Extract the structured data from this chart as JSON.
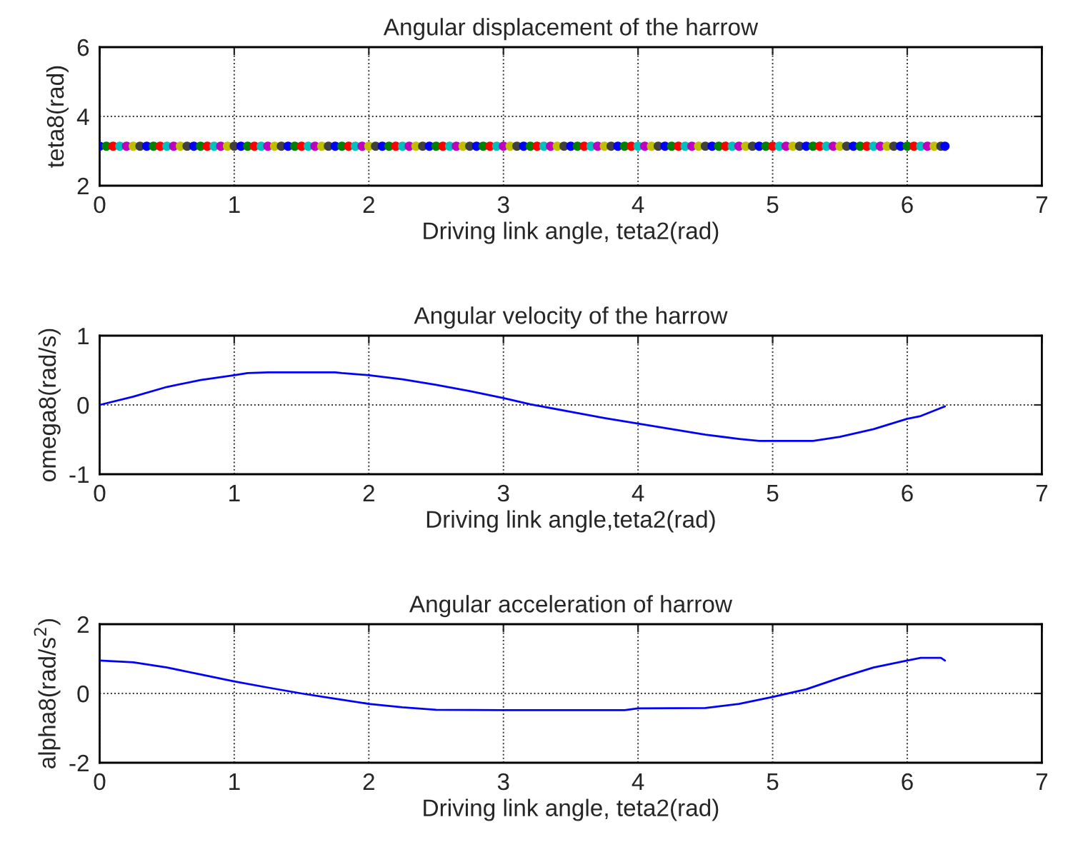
{
  "chart_data": [
    {
      "type": "scatter",
      "title": "Angular displacement of the harrow",
      "xlabel": "Driving link angle, teta2(rad)",
      "ylabel": "teta8(rad)",
      "marker": "circle",
      "grid": true,
      "xlim": [
        0,
        7
      ],
      "xticks": [
        0,
        1,
        2,
        3,
        4,
        5,
        6,
        7
      ],
      "ylim": [
        2,
        6
      ],
      "yticks": [
        2,
        4,
        6
      ],
      "x": [
        0,
        0.05,
        0.1,
        0.15,
        0.2,
        0.25,
        0.3,
        0.35,
        0.4,
        0.45,
        0.5,
        0.55,
        0.6,
        0.65,
        0.7,
        0.75,
        0.8,
        0.85,
        0.9,
        0.95,
        1,
        1.05,
        1.1,
        1.15,
        1.2,
        1.25,
        1.3,
        1.35,
        1.4,
        1.45,
        1.5,
        1.55,
        1.6,
        1.65,
        1.7,
        1.75,
        1.8,
        1.85,
        1.9,
        1.95,
        2,
        2.05,
        2.1,
        2.15,
        2.2,
        2.25,
        2.3,
        2.35,
        2.4,
        2.45,
        2.5,
        2.55,
        2.6,
        2.65,
        2.7,
        2.75,
        2.8,
        2.85,
        2.9,
        2.95,
        3,
        3.05,
        3.1,
        3.15,
        3.2,
        3.25,
        3.3,
        3.35,
        3.4,
        3.45,
        3.5,
        3.55,
        3.6,
        3.65,
        3.7,
        3.75,
        3.8,
        3.85,
        3.9,
        3.95,
        4,
        4.05,
        4.1,
        4.15,
        4.2,
        4.25,
        4.3,
        4.35,
        4.4,
        4.45,
        4.5,
        4.55,
        4.6,
        4.65,
        4.7,
        4.75,
        4.8,
        4.85,
        4.9,
        4.95,
        5,
        5.05,
        5.1,
        5.15,
        5.2,
        5.25,
        5.3,
        5.35,
        5.4,
        5.45,
        5.5,
        5.55,
        5.6,
        5.65,
        5.7,
        5.75,
        5.8,
        5.85,
        5.9,
        5.95,
        6,
        6.05,
        6.1,
        6.15,
        6.2,
        6.25,
        6.28
      ],
      "values": [
        3.14,
        3.14,
        3.14,
        3.14,
        3.14,
        3.14,
        3.14,
        3.14,
        3.14,
        3.14,
        3.14,
        3.14,
        3.14,
        3.14,
        3.14,
        3.14,
        3.14,
        3.14,
        3.14,
        3.14,
        3.14,
        3.14,
        3.14,
        3.14,
        3.14,
        3.14,
        3.14,
        3.14,
        3.14,
        3.14,
        3.14,
        3.14,
        3.14,
        3.14,
        3.14,
        3.14,
        3.14,
        3.14,
        3.14,
        3.14,
        3.14,
        3.14,
        3.14,
        3.14,
        3.14,
        3.14,
        3.14,
        3.14,
        3.14,
        3.14,
        3.14,
        3.14,
        3.14,
        3.14,
        3.14,
        3.14,
        3.14,
        3.14,
        3.14,
        3.14,
        3.14,
        3.14,
        3.14,
        3.14,
        3.14,
        3.14,
        3.14,
        3.14,
        3.14,
        3.14,
        3.14,
        3.14,
        3.14,
        3.14,
        3.14,
        3.14,
        3.14,
        3.14,
        3.14,
        3.14,
        3.14,
        3.14,
        3.14,
        3.14,
        3.14,
        3.14,
        3.14,
        3.14,
        3.14,
        3.14,
        3.14,
        3.14,
        3.14,
        3.14,
        3.14,
        3.14,
        3.14,
        3.14,
        3.14,
        3.14,
        3.14,
        3.14,
        3.14,
        3.14,
        3.14,
        3.14,
        3.14,
        3.14,
        3.14,
        3.14,
        3.14,
        3.14,
        3.14,
        3.14,
        3.14,
        3.14,
        3.14,
        3.14,
        3.14,
        3.14,
        3.14,
        3.14,
        3.14,
        3.14,
        3.14,
        3.14,
        3.14
      ],
      "colors": [
        "#0000ff",
        "#008000",
        "#ff0000",
        "#00bfbf",
        "#bf00bf",
        "#bfbf00",
        "#404040",
        "#0000ff",
        "#008000",
        "#ff0000",
        "#00bfbf",
        "#bf00bf",
        "#bfbf00",
        "#404040",
        "#0000ff",
        "#008000",
        "#ff0000",
        "#00bfbf",
        "#bf00bf",
        "#bfbf00",
        "#404040",
        "#0000ff",
        "#008000",
        "#ff0000",
        "#00bfbf",
        "#bf00bf",
        "#bfbf00",
        "#404040",
        "#0000ff",
        "#008000",
        "#ff0000",
        "#00bfbf",
        "#bf00bf",
        "#bfbf00",
        "#404040",
        "#0000ff",
        "#008000",
        "#ff0000",
        "#00bfbf",
        "#bf00bf",
        "#bfbf00",
        "#404040",
        "#0000ff",
        "#008000",
        "#ff0000",
        "#00bfbf",
        "#bf00bf",
        "#bfbf00",
        "#404040",
        "#0000ff",
        "#008000",
        "#ff0000",
        "#00bfbf",
        "#bf00bf",
        "#bfbf00",
        "#404040",
        "#0000ff",
        "#008000",
        "#ff0000",
        "#00bfbf",
        "#bf00bf",
        "#bfbf00",
        "#404040",
        "#0000ff",
        "#008000",
        "#ff0000",
        "#00bfbf",
        "#bf00bf",
        "#bfbf00",
        "#404040",
        "#0000ff",
        "#008000",
        "#ff0000",
        "#00bfbf",
        "#bf00bf",
        "#bfbf00",
        "#404040",
        "#0000ff",
        "#008000",
        "#ff0000",
        "#00bfbf",
        "#bf00bf",
        "#bfbf00",
        "#404040",
        "#0000ff",
        "#008000",
        "#ff0000",
        "#00bfbf",
        "#bf00bf",
        "#bfbf00",
        "#404040",
        "#0000ff",
        "#008000",
        "#ff0000",
        "#00bfbf",
        "#bf00bf",
        "#bfbf00",
        "#404040",
        "#0000ff",
        "#008000",
        "#ff0000",
        "#00bfbf",
        "#bf00bf",
        "#bfbf00",
        "#404040",
        "#0000ff",
        "#008000",
        "#ff0000",
        "#00bfbf",
        "#bf00bf",
        "#bfbf00",
        "#404040",
        "#0000ff",
        "#008000",
        "#ff0000",
        "#00bfbf",
        "#bf00bf",
        "#bfbf00",
        "#404040",
        "#0000ff",
        "#008000",
        "#ff0000",
        "#00bfbf",
        "#bf00bf",
        "#bfbf00",
        "#404040",
        "#0000ff"
      ]
    },
    {
      "type": "line",
      "title": "Angular velocity of the harrow",
      "xlabel": "Driving link angle,teta2(rad)",
      "ylabel": "omega8(rad/s)",
      "grid": true,
      "xlim": [
        0,
        7
      ],
      "xticks": [
        0,
        1,
        2,
        3,
        4,
        5,
        6,
        7
      ],
      "ylim": [
        -1,
        1
      ],
      "yticks": [
        -1,
        0,
        1
      ],
      "series": [
        {
          "color": "#0000ff",
          "x": [
            0,
            0.25,
            0.5,
            0.75,
            1,
            1.1,
            1.25,
            1.75,
            1.8,
            2,
            2.25,
            2.5,
            2.75,
            3,
            3.2,
            3.5,
            3.75,
            4,
            4.25,
            4.5,
            4.75,
            4.9,
            5.3,
            5.5,
            5.75,
            6,
            6.1,
            6.28
          ],
          "values": [
            0,
            0.12,
            0.26,
            0.36,
            0.43,
            0.46,
            0.47,
            0.47,
            0.46,
            0.43,
            0.37,
            0.29,
            0.2,
            0.1,
            0.01,
            -0.1,
            -0.19,
            -0.27,
            -0.35,
            -0.43,
            -0.49,
            -0.52,
            -0.52,
            -0.46,
            -0.35,
            -0.2,
            -0.16,
            -0.02
          ]
        }
      ]
    },
    {
      "type": "line",
      "title": "Angular acceleration of harrow",
      "xlabel": "Driving link angle, teta2(rad)",
      "ylabel": "alpha8(rad/s$^{2}$)",
      "grid": true,
      "xlim": [
        0,
        7
      ],
      "xticks": [
        0,
        1,
        2,
        3,
        4,
        5,
        6,
        7
      ],
      "ylim": [
        -2,
        2
      ],
      "yticks": [
        -2,
        0,
        2
      ],
      "series": [
        {
          "color": "#0000ff",
          "x": [
            0,
            0.25,
            0.5,
            0.75,
            1,
            1.25,
            1.5,
            1.75,
            2,
            2.25,
            2.5,
            3,
            3.5,
            3.9,
            4,
            4.5,
            4.75,
            5,
            5.25,
            5.5,
            5.75,
            6,
            6.1,
            6.25,
            6.28
          ],
          "values": [
            0.95,
            0.9,
            0.75,
            0.55,
            0.35,
            0.17,
            0.0,
            -0.15,
            -0.3,
            -0.4,
            -0.47,
            -0.48,
            -0.48,
            -0.48,
            -0.43,
            -0.42,
            -0.3,
            -0.1,
            0.12,
            0.45,
            0.75,
            0.95,
            1.03,
            1.03,
            0.95
          ]
        }
      ]
    }
  ]
}
